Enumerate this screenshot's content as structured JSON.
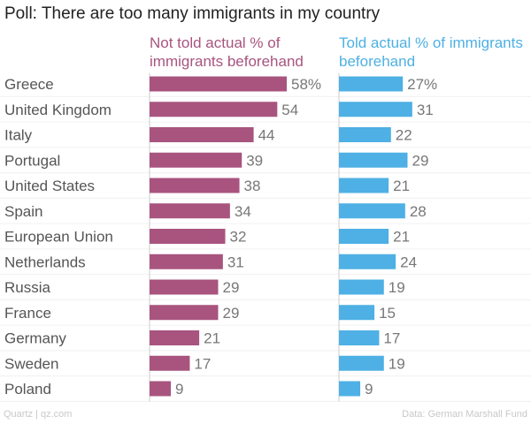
{
  "chart_data": {
    "type": "bar",
    "orientation": "horizontal",
    "title": "Poll: There are too many immigrants in my country",
    "categories": [
      "Greece",
      "United Kingdom",
      "Italy",
      "Portugal",
      "United States",
      "Spain",
      "European Union",
      "Netherlands",
      "Russia",
      "France",
      "Germany",
      "Sweden",
      "Poland"
    ],
    "series": [
      {
        "name": "Not told actual % of immigrants beforehand",
        "values": [
          58,
          54,
          44,
          39,
          38,
          34,
          32,
          31,
          29,
          29,
          21,
          17,
          9
        ],
        "color": "#a8547f",
        "value_labels": [
          "58%",
          "54",
          "44",
          "39",
          "38",
          "34",
          "32",
          "31",
          "29",
          "29",
          "21",
          "17",
          "9"
        ]
      },
      {
        "name": "Told actual % of immigrants beforehand",
        "values": [
          27,
          31,
          22,
          29,
          21,
          28,
          21,
          24,
          19,
          15,
          17,
          19,
          9
        ],
        "color": "#4eb0e4",
        "value_labels": [
          "27%",
          "31",
          "22",
          "29",
          "21",
          "28",
          "21",
          "24",
          "19",
          "15",
          "17",
          "19",
          "9"
        ]
      }
    ],
    "xlim": [
      0,
      60
    ],
    "grid": false,
    "legend": "top (column headers)"
  },
  "footer": {
    "source": "Quartz | qz.com",
    "data_credit": "Data: German Marshall Fund"
  }
}
